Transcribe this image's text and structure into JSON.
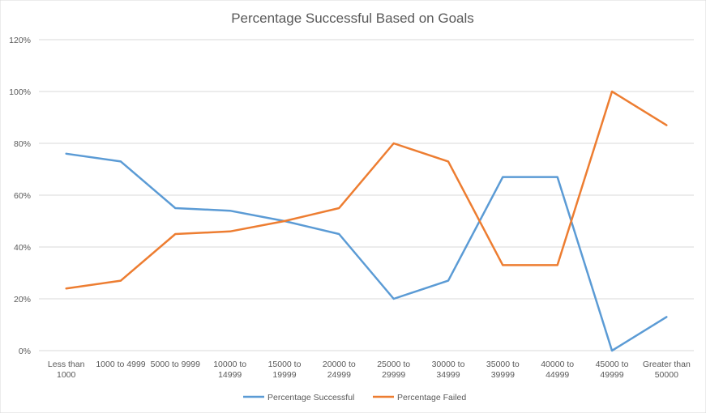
{
  "chart_data": {
    "type": "line",
    "title": "Percentage Successful Based on Goals",
    "xlabel": "",
    "ylabel": "",
    "ylim": [
      0,
      120
    ],
    "y_ticks": [
      0,
      20,
      40,
      60,
      80,
      100,
      120
    ],
    "y_tick_labels": [
      "0%",
      "20%",
      "40%",
      "60%",
      "80%",
      "100%",
      "120%"
    ],
    "grid": true,
    "legend_position": "bottom",
    "categories": [
      [
        "Less than",
        "1000"
      ],
      [
        "1000 to 4999"
      ],
      [
        "5000 to 9999"
      ],
      [
        "10000 to",
        "14999"
      ],
      [
        "15000 to",
        "19999"
      ],
      [
        "20000 to",
        "24999"
      ],
      [
        "25000 to",
        "29999"
      ],
      [
        "30000 to",
        "34999"
      ],
      [
        "35000 to",
        "39999"
      ],
      [
        "40000 to",
        "44999"
      ],
      [
        "45000 to",
        "49999"
      ],
      [
        "Greater than",
        "50000"
      ]
    ],
    "series": [
      {
        "name": "Percentage Successful",
        "color": "#5B9BD5",
        "values": [
          76,
          73,
          55,
          54,
          50,
          45,
          20,
          27,
          67,
          67,
          0,
          13
        ]
      },
      {
        "name": "Percentage Failed",
        "color": "#ED7D31",
        "values": [
          24,
          27,
          45,
          46,
          50,
          55,
          80,
          73,
          33,
          33,
          100,
          87
        ]
      }
    ]
  }
}
